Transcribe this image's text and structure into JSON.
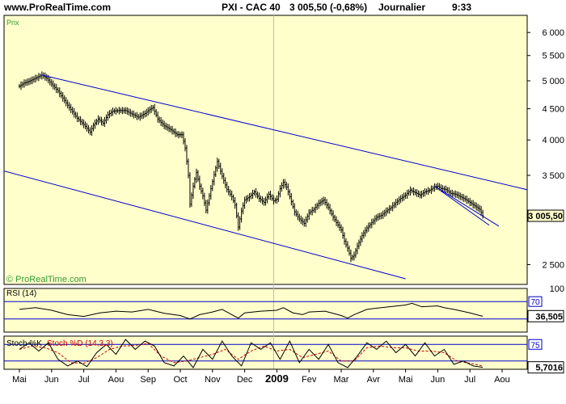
{
  "header": {
    "site": "www.ProRealTime.com",
    "instrument": "PXI - CAC 40",
    "quote": "3 005,50 (-0,68%)",
    "period": "Journalier",
    "time": "9:33"
  },
  "colors": {
    "panel_bg": "#FFFFCC",
    "frame": "#000000",
    "price": "#000000",
    "channel": "#0000CC",
    "label_green": "#339933",
    "stoch_d": "#CC0000",
    "grid": "#BBBBBB"
  },
  "chart_data": [
    {
      "type": "ohlc",
      "panel": "price",
      "legend": "Prix",
      "watermark": "© ProRealTime.com",
      "scale": "log",
      "ylim": [
        2320,
        6400
      ],
      "y_ticks": [
        {
          "v": 6000,
          "label": "6 000"
        },
        {
          "v": 5500,
          "label": "5 500"
        },
        {
          "v": 5000,
          "label": "5 000"
        },
        {
          "v": 4500,
          "label": "4 500"
        },
        {
          "v": 4000,
          "label": "4 000"
        },
        {
          "v": 3500,
          "label": "3 500"
        },
        {
          "v": 2500,
          "label": "2 500"
        }
      ],
      "last_value": 3005.5,
      "last_label": "3 005,50",
      "x_months": [
        "Mai",
        "Jun",
        "Jul",
        "Aou",
        "Sep",
        "Oct",
        "Nov",
        "Dec",
        "2009",
        "Fev",
        "Mar",
        "Avr",
        "Mai",
        "Jun",
        "Jul",
        "Aou"
      ],
      "year_marker_index": 8,
      "series": [
        [
          0.0,
          4900
        ],
        [
          0.15,
          4960
        ],
        [
          0.3,
          4990
        ],
        [
          0.5,
          5050
        ],
        [
          0.7,
          5110
        ],
        [
          0.85,
          5050
        ],
        [
          1.0,
          4940
        ],
        [
          1.2,
          4810
        ],
        [
          1.5,
          4560
        ],
        [
          1.8,
          4340
        ],
        [
          2.0,
          4240
        ],
        [
          2.2,
          4120
        ],
        [
          2.3,
          4230
        ],
        [
          2.45,
          4330
        ],
        [
          2.6,
          4260
        ],
        [
          2.75,
          4400
        ],
        [
          2.9,
          4460
        ],
        [
          3.1,
          4470
        ],
        [
          3.3,
          4470
        ],
        [
          3.5,
          4410
        ],
        [
          3.7,
          4360
        ],
        [
          3.9,
          4420
        ],
        [
          4.05,
          4490
        ],
        [
          4.15,
          4520
        ],
        [
          4.3,
          4330
        ],
        [
          4.5,
          4220
        ],
        [
          4.7,
          4160
        ],
        [
          4.9,
          4080
        ],
        [
          5.05,
          4080
        ],
        [
          5.15,
          3880
        ],
        [
          5.25,
          3500
        ],
        [
          5.3,
          3140
        ],
        [
          5.4,
          3360
        ],
        [
          5.5,
          3540
        ],
        [
          5.6,
          3360
        ],
        [
          5.7,
          3240
        ],
        [
          5.8,
          3070
        ],
        [
          5.9,
          3240
        ],
        [
          6.0,
          3420
        ],
        [
          6.15,
          3690
        ],
        [
          6.3,
          3490
        ],
        [
          6.45,
          3320
        ],
        [
          6.6,
          3230
        ],
        [
          6.7,
          3130
        ],
        [
          6.8,
          2880
        ],
        [
          6.9,
          3060
        ],
        [
          7.0,
          3190
        ],
        [
          7.15,
          3230
        ],
        [
          7.3,
          3290
        ],
        [
          7.45,
          3210
        ],
        [
          7.6,
          3160
        ],
        [
          7.75,
          3260
        ],
        [
          7.9,
          3180
        ],
        [
          8.0,
          3200
        ],
        [
          8.1,
          3330
        ],
        [
          8.2,
          3410
        ],
        [
          8.3,
          3350
        ],
        [
          8.4,
          3230
        ],
        [
          8.55,
          3050
        ],
        [
          8.7,
          2970
        ],
        [
          8.85,
          2920
        ],
        [
          9.0,
          3040
        ],
        [
          9.15,
          3080
        ],
        [
          9.3,
          3150
        ],
        [
          9.45,
          3190
        ],
        [
          9.6,
          3100
        ],
        [
          9.75,
          2990
        ],
        [
          9.85,
          2930
        ],
        [
          10.0,
          2850
        ],
        [
          10.1,
          2730
        ],
        [
          10.2,
          2660
        ],
        [
          10.3,
          2560
        ],
        [
          10.4,
          2590
        ],
        [
          10.5,
          2680
        ],
        [
          10.65,
          2790
        ],
        [
          10.8,
          2870
        ],
        [
          10.95,
          2930
        ],
        [
          11.1,
          2990
        ],
        [
          11.25,
          3010
        ],
        [
          11.4,
          3060
        ],
        [
          11.55,
          3100
        ],
        [
          11.7,
          3160
        ],
        [
          11.85,
          3210
        ],
        [
          12.0,
          3250
        ],
        [
          12.15,
          3310
        ],
        [
          12.3,
          3280
        ],
        [
          12.45,
          3250
        ],
        [
          12.6,
          3290
        ],
        [
          12.75,
          3310
        ],
        [
          12.9,
          3350
        ],
        [
          13.0,
          3360
        ],
        [
          13.1,
          3330
        ],
        [
          13.25,
          3320
        ],
        [
          13.4,
          3270
        ],
        [
          13.55,
          3260
        ],
        [
          13.7,
          3230
        ],
        [
          13.85,
          3200
        ],
        [
          14.0,
          3160
        ],
        [
          14.15,
          3120
        ],
        [
          14.3,
          3080
        ],
        [
          14.4,
          3005.5
        ]
      ],
      "channel_lines": [
        {
          "from": [
            0.7,
            5110
          ],
          "to": [
            16.8,
            3220
          ]
        },
        {
          "from": [
            -1.0,
            3620
          ],
          "to": [
            12.0,
            2370
          ]
        },
        {
          "from": [
            12.9,
            3360
          ],
          "to": [
            14.9,
            2890
          ]
        },
        {
          "from": [
            13.1,
            3300
          ],
          "to": [
            14.6,
            2900
          ]
        }
      ]
    },
    {
      "type": "line",
      "panel": "rsi",
      "legend": "RSI (14)",
      "ylim": [
        0,
        100
      ],
      "y_tick_label": "100",
      "levels": [
        30,
        70
      ],
      "level_label": "70",
      "last_value": 36.505,
      "last_label": "36,505",
      "series": [
        [
          0.0,
          52
        ],
        [
          0.5,
          56
        ],
        [
          1.0,
          50
        ],
        [
          1.5,
          40
        ],
        [
          2.0,
          36
        ],
        [
          2.5,
          44
        ],
        [
          3.0,
          48
        ],
        [
          3.5,
          46
        ],
        [
          4.0,
          52
        ],
        [
          4.5,
          43
        ],
        [
          5.0,
          38
        ],
        [
          5.3,
          30
        ],
        [
          5.6,
          40
        ],
        [
          6.0,
          46
        ],
        [
          6.3,
          52
        ],
        [
          6.6,
          40
        ],
        [
          6.8,
          32
        ],
        [
          7.0,
          44
        ],
        [
          7.5,
          48
        ],
        [
          8.0,
          50
        ],
        [
          8.2,
          56
        ],
        [
          8.5,
          44
        ],
        [
          8.8,
          40
        ],
        [
          9.0,
          46
        ],
        [
          9.5,
          48
        ],
        [
          10.0,
          38
        ],
        [
          10.2,
          32
        ],
        [
          10.4,
          40
        ],
        [
          10.8,
          52
        ],
        [
          11.0,
          54
        ],
        [
          11.5,
          58
        ],
        [
          12.0,
          62
        ],
        [
          12.2,
          66
        ],
        [
          12.5,
          58
        ],
        [
          13.0,
          60
        ],
        [
          13.2,
          56
        ],
        [
          13.5,
          52
        ],
        [
          14.0,
          44
        ],
        [
          14.3,
          38
        ],
        [
          14.4,
          36.5
        ]
      ]
    },
    {
      "type": "line",
      "panel": "stoch",
      "legend": "Stoch %K",
      "legend2": "Stoch %D (14,3,3)",
      "ylim": [
        0,
        100
      ],
      "levels": [
        25,
        75
      ],
      "level_label": "75",
      "last_value": 5.7016,
      "last_label": "5,7016",
      "series_k": [
        [
          0.0,
          60
        ],
        [
          0.3,
          80
        ],
        [
          0.6,
          55
        ],
        [
          0.9,
          80
        ],
        [
          1.2,
          30
        ],
        [
          1.5,
          10
        ],
        [
          1.8,
          25
        ],
        [
          2.1,
          8
        ],
        [
          2.4,
          50
        ],
        [
          2.7,
          75
        ],
        [
          3.0,
          45
        ],
        [
          3.3,
          90
        ],
        [
          3.6,
          60
        ],
        [
          3.9,
          85
        ],
        [
          4.2,
          70
        ],
        [
          4.5,
          20
        ],
        [
          4.8,
          10
        ],
        [
          5.1,
          40
        ],
        [
          5.4,
          5
        ],
        [
          5.7,
          60
        ],
        [
          6.0,
          30
        ],
        [
          6.3,
          85
        ],
        [
          6.6,
          40
        ],
        [
          6.9,
          10
        ],
        [
          7.2,
          80
        ],
        [
          7.5,
          60
        ],
        [
          7.8,
          80
        ],
        [
          8.1,
          30
        ],
        [
          8.4,
          85
        ],
        [
          8.7,
          20
        ],
        [
          9.0,
          60
        ],
        [
          9.3,
          30
        ],
        [
          9.6,
          75
        ],
        [
          9.9,
          20
        ],
        [
          10.2,
          5
        ],
        [
          10.5,
          40
        ],
        [
          10.8,
          80
        ],
        [
          11.1,
          60
        ],
        [
          11.4,
          85
        ],
        [
          11.7,
          50
        ],
        [
          12.0,
          75
        ],
        [
          12.3,
          40
        ],
        [
          12.6,
          80
        ],
        [
          12.9,
          40
        ],
        [
          13.2,
          60
        ],
        [
          13.5,
          15
        ],
        [
          13.8,
          25
        ],
        [
          14.1,
          10
        ],
        [
          14.4,
          5.7
        ]
      ],
      "series_d": [
        [
          0.0,
          60
        ],
        [
          0.4,
          70
        ],
        [
          0.8,
          65
        ],
        [
          1.2,
          50
        ],
        [
          1.6,
          20
        ],
        [
          2.0,
          18
        ],
        [
          2.4,
          35
        ],
        [
          2.8,
          60
        ],
        [
          3.2,
          70
        ],
        [
          3.6,
          72
        ],
        [
          4.0,
          78
        ],
        [
          4.4,
          40
        ],
        [
          4.8,
          20
        ],
        [
          5.2,
          25
        ],
        [
          5.6,
          35
        ],
        [
          6.0,
          45
        ],
        [
          6.4,
          60
        ],
        [
          6.8,
          30
        ],
        [
          7.2,
          55
        ],
        [
          7.6,
          70
        ],
        [
          8.0,
          55
        ],
        [
          8.4,
          60
        ],
        [
          8.8,
          35
        ],
        [
          9.2,
          45
        ],
        [
          9.6,
          55
        ],
        [
          10.0,
          25
        ],
        [
          10.4,
          25
        ],
        [
          10.8,
          65
        ],
        [
          11.2,
          70
        ],
        [
          11.6,
          65
        ],
        [
          12.0,
          65
        ],
        [
          12.4,
          55
        ],
        [
          12.8,
          55
        ],
        [
          13.2,
          50
        ],
        [
          13.6,
          25
        ],
        [
          14.0,
          18
        ],
        [
          14.4,
          10
        ]
      ]
    }
  ]
}
